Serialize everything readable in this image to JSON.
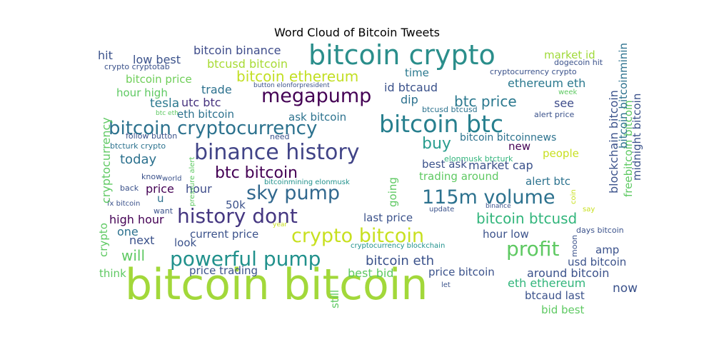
{
  "chart_data": {
    "type": "wordcloud",
    "title": "Word Cloud of Bitcoin Tweets",
    "background": "#ffffff",
    "colormap": "viridis",
    "words": [
      {
        "text": "bitcoin bitcoin",
        "color": "#a2d83a"
      },
      {
        "text": "bitcoin crypto",
        "color": "#2a8e8b"
      },
      {
        "text": "bitcoin btc",
        "color": "#277f8e"
      },
      {
        "text": "binance history",
        "color": "#414487"
      },
      {
        "text": "bitcoin cryptocurrency",
        "color": "#2c728e"
      },
      {
        "text": "megapump",
        "color": "#440154"
      },
      {
        "text": "sky pump",
        "color": "#31688e"
      },
      {
        "text": "115m volume",
        "color": "#2c718e"
      },
      {
        "text": "history dont",
        "color": "#453781"
      },
      {
        "text": "crypto bitcoin",
        "color": "#c8e020"
      },
      {
        "text": "powerful pump",
        "color": "#21918c"
      },
      {
        "text": "profit",
        "color": "#5ec962"
      },
      {
        "text": "btc bitcoin",
        "color": "#440154"
      },
      {
        "text": "bitcoin btcusd",
        "color": "#31b57b"
      },
      {
        "text": "bitcoin ethereum",
        "color": "#c2df23"
      },
      {
        "text": "btc price",
        "color": "#2a788e"
      },
      {
        "text": "buy",
        "color": "#2a9d8f"
      },
      {
        "text": "will",
        "color": "#5ec962"
      },
      {
        "text": "bitcoin eth",
        "color": "#3b528b"
      },
      {
        "text": "bitcoin binance",
        "color": "#3e4c8a"
      },
      {
        "text": "btcusd bitcoin",
        "color": "#a8db34"
      },
      {
        "text": "bitcoin price",
        "color": "#6ece58"
      },
      {
        "text": "hour high",
        "color": "#5ec962"
      },
      {
        "text": "low best",
        "color": "#3b528b"
      },
      {
        "text": "hit",
        "color": "#3b528b"
      },
      {
        "text": "time",
        "color": "#2a788e"
      },
      {
        "text": "market id",
        "color": "#a0da39"
      },
      {
        "text": "dogecoin hit",
        "color": "#3b528b"
      },
      {
        "text": "cryptocurrency crypto",
        "color": "#3b528b"
      },
      {
        "text": "crypto cryptotab",
        "color": "#3b528b"
      },
      {
        "text": "trade",
        "color": "#2c718e"
      },
      {
        "text": "id btcaud",
        "color": "#3b528b"
      },
      {
        "text": "button elonforpresident",
        "color": "#3b528b"
      },
      {
        "text": "ethereum eth",
        "color": "#2a788e"
      },
      {
        "text": "week",
        "color": "#5ec962"
      },
      {
        "text": "tesla",
        "color": "#2a788e"
      },
      {
        "text": "utc btc",
        "color": "#46327e"
      },
      {
        "text": "dip",
        "color": "#2c718e"
      },
      {
        "text": "see",
        "color": "#3e4c8a"
      },
      {
        "text": "alert price",
        "color": "#3b528b"
      },
      {
        "text": "btc eth",
        "color": "#5ec962"
      },
      {
        "text": "eth bitcoin",
        "color": "#2c718e"
      },
      {
        "text": "ask bitcoin",
        "color": "#2c728e"
      },
      {
        "text": "btcusd btcusd",
        "color": "#2c728e"
      },
      {
        "text": "follow button",
        "color": "#3b528b"
      },
      {
        "text": "need",
        "color": "#3b528b"
      },
      {
        "text": "btcturk crypto",
        "color": "#2c728e"
      },
      {
        "text": "bitcoin bitcoinnews",
        "color": "#2c728e"
      },
      {
        "text": "new",
        "color": "#440154"
      },
      {
        "text": "elonmusk btcturk",
        "color": "#31b57b"
      },
      {
        "text": "people",
        "color": "#c8e020"
      },
      {
        "text": "today",
        "color": "#2c718e"
      },
      {
        "text": "best ask",
        "color": "#3b528b"
      },
      {
        "text": "market cap",
        "color": "#3b528b"
      },
      {
        "text": "trading around",
        "color": "#5ec962"
      },
      {
        "text": "alert btc",
        "color": "#2c728e"
      },
      {
        "text": "know",
        "color": "#3b528b"
      },
      {
        "text": "world",
        "color": "#3b528b"
      },
      {
        "text": "price",
        "color": "#440154"
      },
      {
        "text": "hour",
        "color": "#3e4c8a"
      },
      {
        "text": "bitcoinmining elonmusk",
        "color": "#21918c"
      },
      {
        "text": "back",
        "color": "#3b528b"
      },
      {
        "text": "u",
        "color": "#2c718e"
      },
      {
        "text": "fx bitcoin",
        "color": "#3b528b"
      },
      {
        "text": "50k",
        "color": "#3b528b"
      },
      {
        "text": "high hour",
        "color": "#440154"
      },
      {
        "text": "want",
        "color": "#3b528b"
      },
      {
        "text": "last price",
        "color": "#3b528b"
      },
      {
        "text": "update",
        "color": "#3b528b"
      },
      {
        "text": "binance",
        "color": "#3b528b"
      },
      {
        "text": "say",
        "color": "#c8e020"
      },
      {
        "text": "one",
        "color": "#2c718e"
      },
      {
        "text": "next",
        "color": "#3b528b"
      },
      {
        "text": "year",
        "color": "#c8e020"
      },
      {
        "text": "hour low",
        "color": "#3b528b"
      },
      {
        "text": "days bitcoin",
        "color": "#3b528b"
      },
      {
        "text": "current price",
        "color": "#3b528b"
      },
      {
        "text": "look",
        "color": "#3b528b"
      },
      {
        "text": "cryptocurrency blockchain",
        "color": "#21918c"
      },
      {
        "text": "amp",
        "color": "#3b528b"
      },
      {
        "text": "usd bitcoin",
        "color": "#3b528b"
      },
      {
        "text": "think",
        "color": "#5ec962"
      },
      {
        "text": "price trading",
        "color": "#3b528b"
      },
      {
        "text": "best bid",
        "color": "#5ec962"
      },
      {
        "text": "price bitcoin",
        "color": "#3b528b"
      },
      {
        "text": "around bitcoin",
        "color": "#3b528b"
      },
      {
        "text": "eth ethereum",
        "color": "#31b57b"
      },
      {
        "text": "now",
        "color": "#3b528b"
      },
      {
        "text": "let",
        "color": "#3b528b"
      },
      {
        "text": "btcaud last",
        "color": "#3b528b"
      },
      {
        "text": "bid best",
        "color": "#5ec962"
      },
      {
        "text": "cryptocurrency",
        "color": "#5ec962"
      },
      {
        "text": "crypto",
        "color": "#5ec962"
      },
      {
        "text": "pressure alert",
        "color": "#5ec962"
      },
      {
        "text": "going",
        "color": "#5ec962"
      },
      {
        "text": "still",
        "color": "#5ec962"
      },
      {
        "text": "blockchain bitcoin",
        "color": "#3b528b"
      },
      {
        "text": "freebitcoin bitcoin",
        "color": "#5ec962"
      },
      {
        "text": "bitcoin bitcoinmining",
        "color": "#2c718e"
      },
      {
        "text": "midnight bitcoin",
        "color": "#3b528b"
      },
      {
        "text": "moon",
        "color": "#3b528b"
      },
      {
        "text": "coin",
        "color": "#c8e020"
      }
    ]
  }
}
